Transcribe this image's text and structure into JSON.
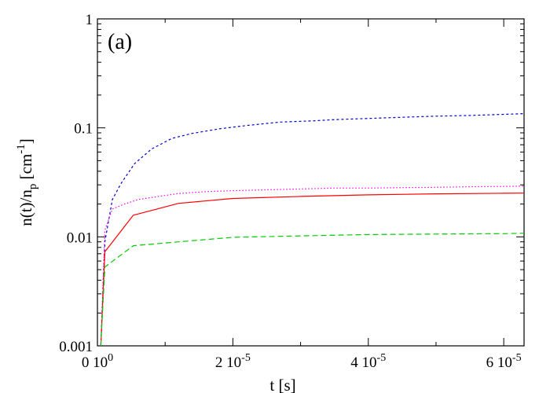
{
  "chart_data": {
    "type": "line",
    "panel_label": "(a)",
    "xlabel": "t [s]",
    "ylabel": {
      "base": "n(t)/n",
      "sub": "p",
      "mid": " [cm",
      "sup": "-1",
      "end": "]"
    },
    "xlim": [
      0,
      6.3e-05
    ],
    "ylim": [
      0.001,
      1
    ],
    "yscale": "log",
    "x_ticks": [
      {
        "value": 0,
        "label": "0 10",
        "exp": "0"
      },
      {
        "value": 2e-05,
        "label": "2 10",
        "exp": "-5"
      },
      {
        "value": 4e-05,
        "label": "4 10",
        "exp": "-5"
      },
      {
        "value": 6e-05,
        "label": "6 10",
        "exp": "-5"
      }
    ],
    "y_ticks": [
      {
        "value": 0.001,
        "label": "0.001"
      },
      {
        "value": 0.01,
        "label": "0.01"
      },
      {
        "value": 0.1,
        "label": "0.1"
      },
      {
        "value": 1,
        "label": "1"
      }
    ],
    "legend": "none",
    "grid": false,
    "series": [
      {
        "color": "#0000cc",
        "dash": "3,3",
        "x": [
          5e-07,
          1.1e-06,
          2.2e-06,
          3.5e-06,
          5.5e-06,
          8e-06,
          1.1e-05,
          1.4e-05,
          1.8e-05,
          2.2e-05,
          2.7e-05,
          3.2e-05,
          3.5e-05,
          4e-05,
          4.5e-05,
          5e-05,
          5.5e-05,
          6e-05,
          6.3e-05
        ],
        "y": [
          0.001,
          0.009,
          0.022,
          0.031,
          0.047,
          0.064,
          0.08,
          0.089,
          0.098,
          0.105,
          0.113,
          0.116,
          0.119,
          0.122,
          0.125,
          0.128,
          0.13,
          0.133,
          0.135
        ]
      },
      {
        "color": "#ee00ee",
        "dash": "1.5,2.5",
        "x": [
          5e-07,
          1.1e-06,
          2.2e-06,
          4e-06,
          6e-06,
          9e-06,
          1.2e-05,
          1.6e-05,
          2e-05,
          2.5e-05,
          3e-05,
          3.5e-05,
          4e-05,
          4.5e-05,
          5e-05,
          5.5e-05,
          6e-05,
          6.3e-05
        ],
        "y": [
          0.001,
          0.0115,
          0.018,
          0.02,
          0.022,
          0.0235,
          0.025,
          0.026,
          0.0265,
          0.027,
          0.0275,
          0.028,
          0.028,
          0.0283,
          0.0285,
          0.0288,
          0.029,
          0.0292
        ]
      },
      {
        "color": "#ff0000",
        "dash": "",
        "x": [
          5e-07,
          1.1e-06,
          5.3e-06,
          1.2e-05,
          2e-05,
          3e-05,
          4e-05,
          5e-05,
          6e-05,
          6.3e-05
        ],
        "y": [
          0.001,
          0.0073,
          0.0158,
          0.0203,
          0.0225,
          0.0235,
          0.0243,
          0.0248,
          0.0251,
          0.0252
        ]
      },
      {
        "color": "#00cc00",
        "dash": "7,4",
        "x": [
          5e-07,
          1.1e-06,
          5.3e-06,
          1.2e-05,
          2e-05,
          3e-05,
          4e-05,
          5e-05,
          6e-05,
          6.3e-05
        ],
        "y": [
          0.001,
          0.0053,
          0.0083,
          0.009,
          0.0099,
          0.0102,
          0.0105,
          0.0106,
          0.0107,
          0.0108
        ]
      }
    ]
  }
}
